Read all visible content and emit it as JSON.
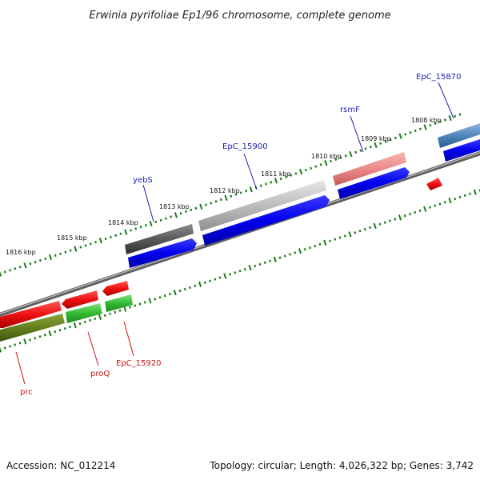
{
  "title": "Erwinia pyrifoliae Ep1/96 chromosome, complete genome",
  "footer": {
    "accession": "Accession: NC_012214",
    "topology": "Topology: circular; Length: 4,026,322 bp; Genes: 3,742"
  },
  "colors": {
    "forward_label": "#1c1cb0",
    "reverse_label": "#cc1111",
    "tick": "#1a7a1a",
    "backbone": "#7a7a7a"
  },
  "kbp_labels": [
    "1816 kbp",
    "1815 kbp",
    "1814 kbp",
    "1813 kbp",
    "1812 kbp",
    "1811 kbp",
    "1810 kbp",
    "1809 kbp",
    "1808 kbp"
  ],
  "gene_labels": {
    "forward": [
      "yebS",
      "EpC_15900",
      "rsmF",
      "EpC_15870"
    ],
    "reverse": [
      "prc",
      "proQ",
      "EpC_15920"
    ]
  }
}
